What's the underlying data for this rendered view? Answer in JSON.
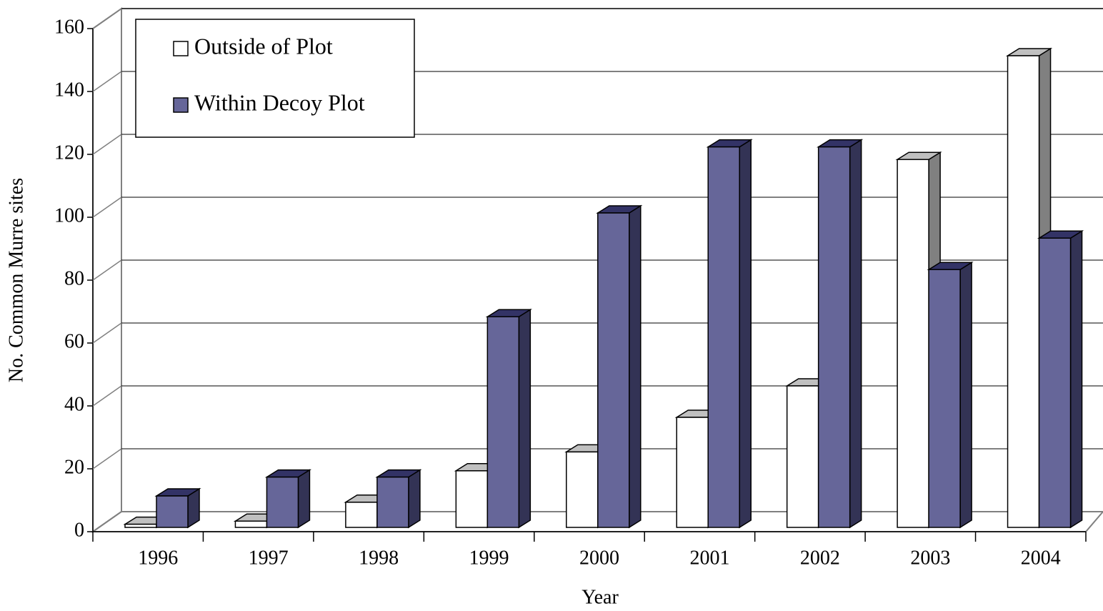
{
  "chart_data": {
    "type": "bar",
    "x_label": "Year",
    "y_label": "No. Common Murre sites",
    "categories": [
      "1996",
      "1997",
      "1998",
      "1999",
      "2000",
      "2001",
      "2002",
      "2003",
      "2004"
    ],
    "series": [
      {
        "name": "Outside of Plot",
        "color": "#ffffff",
        "values": [
          1,
          2,
          8,
          18,
          24,
          35,
          45,
          117,
          150
        ]
      },
      {
        "name": "Within Decoy Plot",
        "color": "#666699",
        "values": [
          10,
          16,
          16,
          67,
          100,
          121,
          121,
          82,
          92
        ]
      }
    ],
    "ylim": [
      0,
      160
    ],
    "yticks": [
      0,
      20,
      40,
      60,
      80,
      100,
      120,
      140,
      160
    ],
    "grid": true,
    "legend": "top-left"
  }
}
